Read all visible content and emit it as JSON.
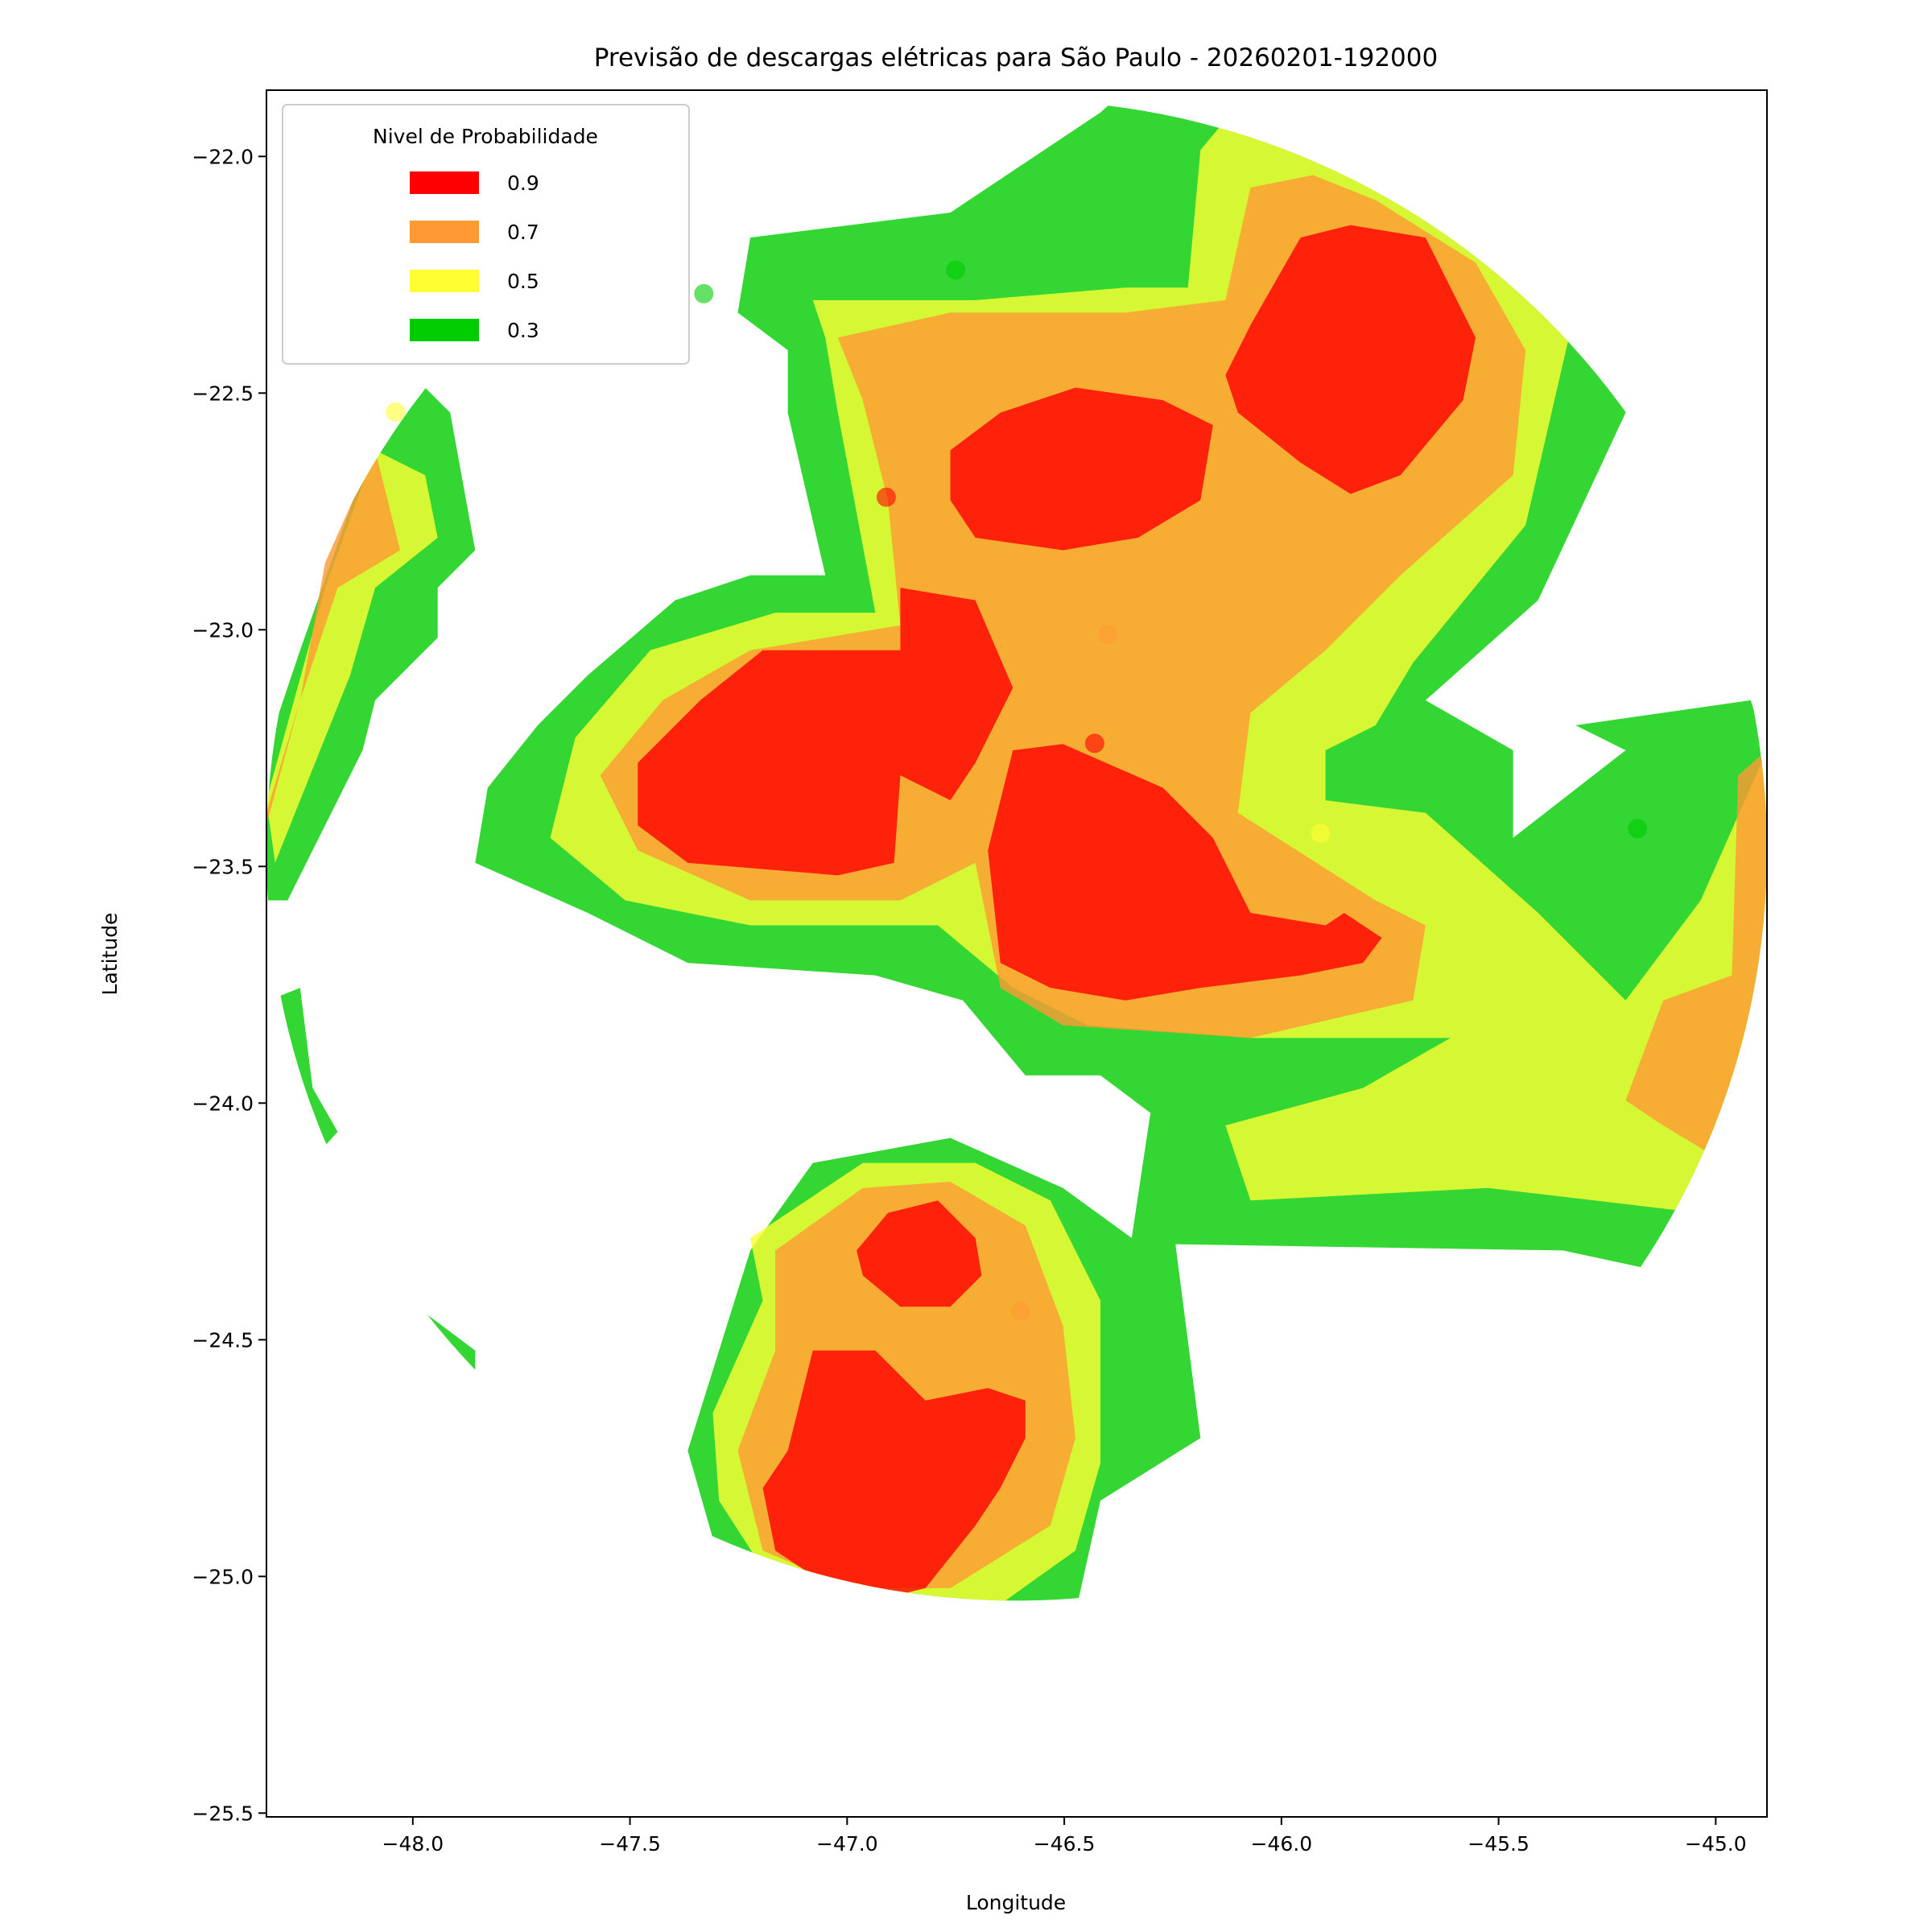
{
  "chart_data": {
    "type": "contour",
    "title": "Previsão de descargas elétricas para São Paulo - 20260201-192000",
    "x_label": "Longitude",
    "y_label": "Latitude",
    "legend_title": "Nivel de Probabilidade",
    "legend_position": "upper left",
    "levels": [
      {
        "value": 0.9,
        "color": "#ff0000"
      },
      {
        "value": 0.7,
        "color": "#ff9933"
      },
      {
        "value": 0.5,
        "color": "#ffff33"
      },
      {
        "value": 0.3,
        "color": "#00cc00"
      }
    ],
    "points": {
      "x": [
        -47.33,
        -46.75,
        -48.04,
        -46.91,
        -46.4,
        -46.43,
        -45.91,
        -45.18,
        -46.6
      ],
      "y": [
        -22.29,
        -22.24,
        -22.54,
        -22.72,
        -23.01,
        -23.24,
        -23.43,
        -23.42,
        -24.44
      ],
      "values": [
        0.3,
        0.3,
        0.5,
        0.9,
        0.7,
        0.9,
        0.5,
        0.3,
        0.7
      ]
    },
    "xlim": [
      -48.337,
      -44.882
    ],
    "ylim": [
      -25.508,
      -21.86
    ],
    "xticks": [
      {
        "value": -48.0,
        "label": "−48.0"
      },
      {
        "value": -47.5,
        "label": "−47.5"
      },
      {
        "value": -47.0,
        "label": "−47.0"
      },
      {
        "value": -46.5,
        "label": "−46.5"
      },
      {
        "value": -46.0,
        "label": "−46.0"
      },
      {
        "value": -45.5,
        "label": "−45.5"
      },
      {
        "value": -45.0,
        "label": "−45.0"
      }
    ],
    "yticks": [
      {
        "value": -22.0,
        "label": "−22.0"
      },
      {
        "value": -22.5,
        "label": "−22.5"
      },
      {
        "value": -23.0,
        "label": "−23.0"
      },
      {
        "value": -23.5,
        "label": "−23.5"
      },
      {
        "value": -24.0,
        "label": "−24.0"
      },
      {
        "value": -24.5,
        "label": "−24.5"
      },
      {
        "value": -25.0,
        "label": "−25.0"
      },
      {
        "value": -25.5,
        "label": "−25.5"
      }
    ]
  }
}
